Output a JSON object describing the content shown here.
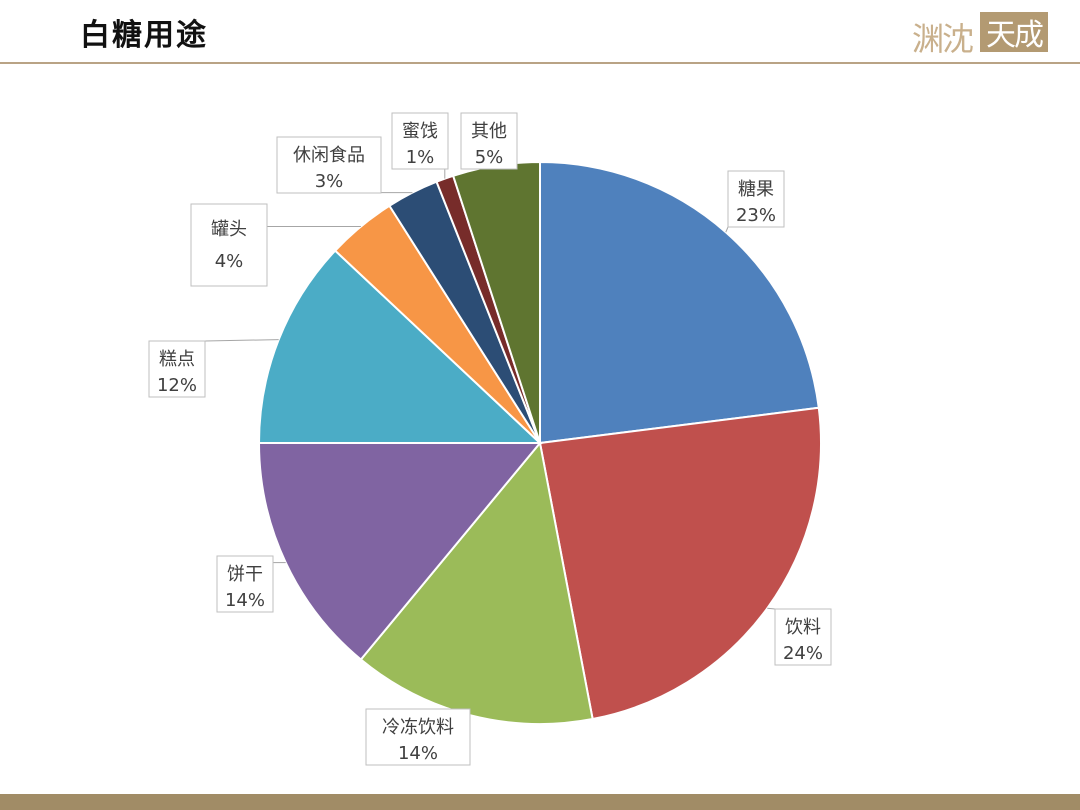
{
  "header": {
    "title": "白糖用途",
    "logo_text_left": "渊沈",
    "logo_text_right": "天成"
  },
  "chart_data": {
    "type": "pie",
    "title": "",
    "start_angle_deg": 0,
    "direction": "clockwise",
    "slices": [
      {
        "name": "糖果",
        "value": 23,
        "label": "23%",
        "color": "#4f81bd"
      },
      {
        "name": "饮料",
        "value": 24,
        "label": "24%",
        "color": "#c0504d"
      },
      {
        "name": "冷冻饮料",
        "value": 14,
        "label": "14%",
        "color": "#9bbb59"
      },
      {
        "name": "饼干",
        "value": 14,
        "label": "14%",
        "color": "#8064a2"
      },
      {
        "name": "糕点",
        "value": 12,
        "label": "12%",
        "color": "#4bacc6"
      },
      {
        "name": "罐头",
        "value": 4,
        "label": "4%",
        "color": "#f79646"
      },
      {
        "name": "休闲食品",
        "value": 3,
        "label": "3%",
        "color": "#2c4d75"
      },
      {
        "name": "蜜饯",
        "value": 1,
        "label": "1%",
        "color": "#772c2a"
      },
      {
        "name": "其他",
        "value": 5,
        "label": "5%",
        "color": "#5f7530"
      }
    ]
  }
}
